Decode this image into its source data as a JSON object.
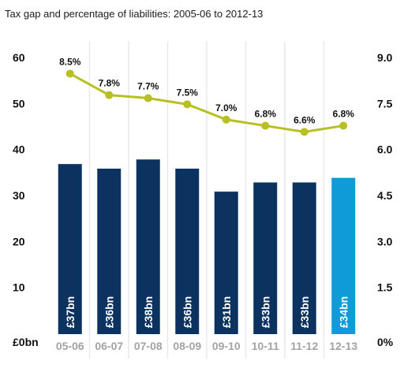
{
  "chart_data": {
    "type": "bar",
    "title": "Tax gap and percentage of liabilities: 2005-06 to 2012-13",
    "categories": [
      "05-06",
      "06-07",
      "07-08",
      "08-09",
      "09-10",
      "10-11",
      "11-12",
      "12-13"
    ],
    "series": [
      {
        "type": "bar",
        "axis": "left",
        "values": [
          37,
          36,
          38,
          36,
          31,
          33,
          33,
          34
        ],
        "labels": [
          "£37bn",
          "£36bn",
          "£38bn",
          "£36bn",
          "£31bn",
          "£33bn",
          "£33bn",
          "£34bn"
        ]
      },
      {
        "type": "line",
        "axis": "right",
        "values": [
          8.5,
          7.8,
          7.7,
          7.5,
          7.0,
          6.8,
          6.6,
          6.8
        ],
        "labels": [
          "8.5%",
          "7.8%",
          "7.7%",
          "7.5%",
          "7.0%",
          "6.8%",
          "6.6%",
          "6.8%"
        ]
      }
    ],
    "y_left": {
      "range": [
        0,
        60
      ],
      "ticks": [
        "£0bn",
        "10",
        "20",
        "30",
        "40",
        "50",
        "60"
      ]
    },
    "y_right": {
      "range": [
        0,
        9
      ],
      "ticks": [
        "0%",
        "1.5",
        "3.0",
        "4.5",
        "6.0",
        "7.5",
        "9.0"
      ]
    },
    "grid": true,
    "highlight_index": 7,
    "colors": {
      "bar": "#0c3260",
      "bar_highlight": "#0e9bd8",
      "line": "#b8bf22",
      "grid": "#e9e9e9",
      "category_label": "#a3a3a3"
    }
  }
}
